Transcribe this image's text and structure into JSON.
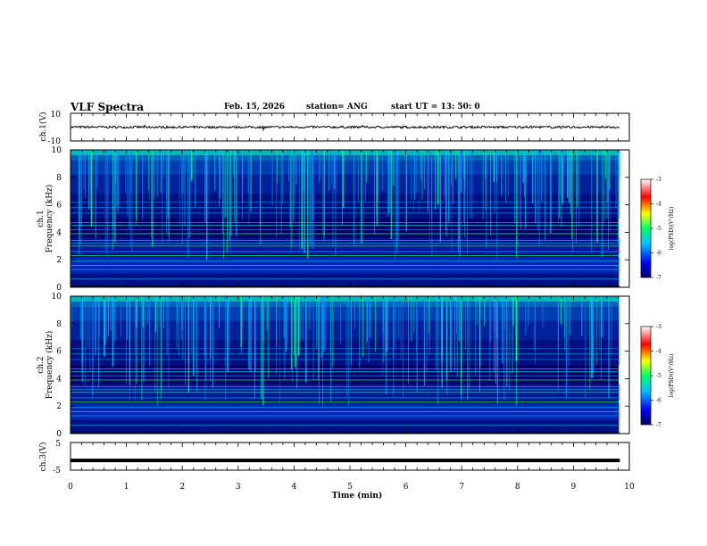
{
  "header": {
    "title": "VLF Spectra",
    "date": "Feb. 15, 2026",
    "station": "station= ANG",
    "start": "start  UT  =   13: 50: 0"
  },
  "chart_data": [
    {
      "type": "line",
      "panel": "ch1-waveform",
      "ylabel": "ch.1(V)",
      "ylim": [
        -10,
        10
      ],
      "yticks": [
        "10",
        "-10"
      ],
      "xlim": [
        0,
        10
      ],
      "baseline": 0
    },
    {
      "type": "heatmap",
      "panel": "ch1-spectrogram",
      "ylabel": "ch.1\nFrequency (kHz)",
      "ylabel_lines": [
        "ch.1",
        "Frequency (kHz)"
      ],
      "ylim": [
        0,
        10
      ],
      "yticks": [
        "0",
        "2",
        "4",
        "6",
        "8",
        "10"
      ],
      "xlim": [
        0,
        10
      ],
      "data_end_min": 9.83,
      "colorbar": {
        "label": "log(PSD)(V²/Hz)",
        "range": [
          -7,
          -3
        ],
        "ticks": [
          "-3",
          "-4",
          "-5",
          "-6",
          "-7"
        ]
      }
    },
    {
      "type": "heatmap",
      "panel": "ch2-spectrogram",
      "ylabel": "ch.2\nFrequency (kHz)",
      "ylabel_lines": [
        "ch.2",
        "Frequency (kHz)"
      ],
      "ylim": [
        0,
        10
      ],
      "yticks": [
        "0",
        "2",
        "4",
        "6",
        "8",
        "10"
      ],
      "xlim": [
        0,
        10
      ],
      "data_end_min": 9.83,
      "colorbar": {
        "label": "log(PSD)(V²/Hz)",
        "range": [
          -7,
          -3
        ],
        "ticks": [
          "-3",
          "-4",
          "-5",
          "-6",
          "-7"
        ]
      }
    },
    {
      "type": "line",
      "panel": "ch3-waveform",
      "ylabel": "ch.3(V)",
      "ylim": [
        -5,
        5
      ],
      "yticks": [
        "5",
        "-5"
      ],
      "xlim": [
        0,
        10
      ],
      "baseline": -1.5,
      "xlabel": "Time (min)",
      "xticks": [
        "0",
        "1",
        "2",
        "3",
        "4",
        "5",
        "6",
        "7",
        "8",
        "9",
        "10"
      ]
    }
  ]
}
